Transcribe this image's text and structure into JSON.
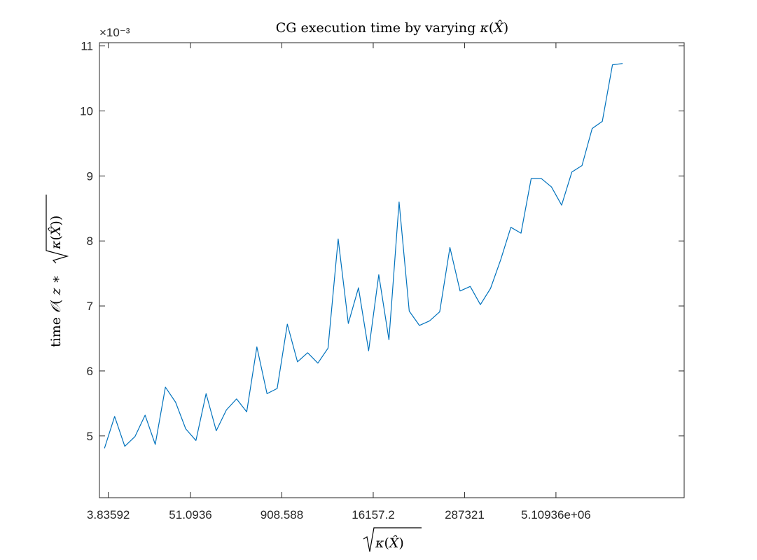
{
  "chart_data": {
    "type": "line",
    "title": "CG execution time by varying κ(X̂)",
    "xlabel": "√κ(X̂)",
    "ylabel": "time 𝒪(z * √κ(X̂))",
    "y_exponent": "×10⁻³",
    "x_scale": "log",
    "ylim": [
      4.05,
      11.05
    ],
    "y_ticks": [
      "5",
      "6",
      "7",
      "8",
      "9",
      "10",
      "11"
    ],
    "y_tick_values": [
      5,
      6,
      7,
      8,
      9,
      10,
      11
    ],
    "x_ticks": [
      "3.83592",
      "51.0936",
      "908.588",
      "16157.2",
      "287321",
      "5.10936e+06"
    ],
    "x_tick_values": [
      3.83592,
      51.0936,
      908.588,
      16157.2,
      287321,
      5109360
    ],
    "xlim_log10": [
      0.4626,
      8.4626
    ],
    "grid": false,
    "color": "#0072bd",
    "x_log10": [
      0.5314,
      0.6704,
      0.8094,
      0.9484,
      1.0874,
      1.2264,
      1.3654,
      1.5044,
      1.6434,
      1.7824,
      1.9214,
      2.0604,
      2.1994,
      2.3384,
      2.4774,
      2.6164,
      2.7554,
      2.8944,
      3.0334,
      3.1724,
      3.3114,
      3.4504,
      3.5894,
      3.7284,
      3.8674,
      4.0064,
      4.1454,
      4.2844,
      4.4234,
      4.5624,
      4.7014,
      4.8404,
      4.9794,
      5.1184,
      5.2574,
      5.3964,
      5.5354,
      5.6744,
      5.8134,
      5.9524,
      6.0914,
      6.2304,
      6.3694,
      6.5084,
      6.6474,
      6.7864,
      6.9254,
      7.0644,
      7.2034,
      7.3424,
      7.4814,
      7.6204
    ],
    "y": [
      4.81,
      5.3,
      4.84,
      4.99,
      5.32,
      4.87,
      5.75,
      5.52,
      5.11,
      4.93,
      5.65,
      5.08,
      5.4,
      5.57,
      5.37,
      6.37,
      5.65,
      5.73,
      6.72,
      6.14,
      6.28,
      6.12,
      6.35,
      8.03,
      6.73,
      7.28,
      6.31,
      7.48,
      6.48,
      8.6,
      6.92,
      6.7,
      6.77,
      6.91,
      7.9,
      7.23,
      7.3,
      7.02,
      7.27,
      7.71,
      8.21,
      8.12,
      8.96,
      8.96,
      8.83,
      8.55,
      9.06,
      9.16,
      9.73,
      9.84,
      10.71,
      10.73
    ]
  }
}
